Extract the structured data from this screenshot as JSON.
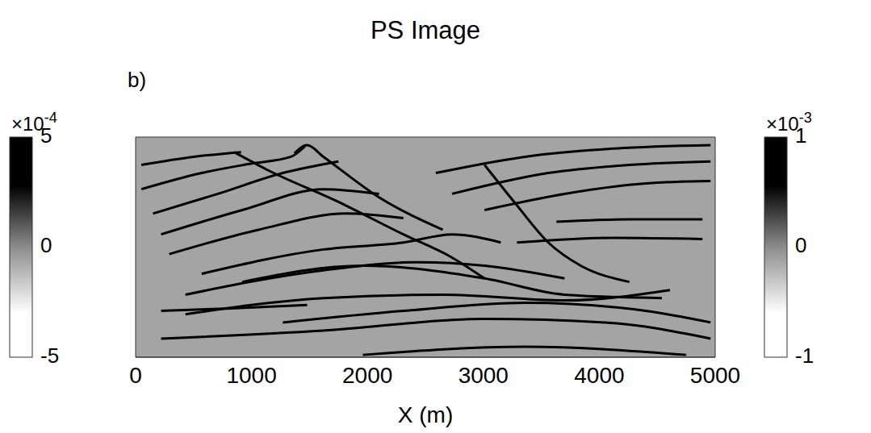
{
  "chart_data": {
    "type": "line",
    "title": "PS Image",
    "panel": "b)",
    "x_label": "X (m)",
    "xlim": [
      0,
      5000
    ],
    "xticks": [
      0,
      1000,
      2000,
      3000,
      4000,
      5000
    ],
    "ylim": [
      0,
      1900
    ],
    "yticks": [],
    "tick_labels": "x",
    "grid": false,
    "series": [
      {
        "color": "#000000",
        "x": [
          50,
          500,
          910
        ],
        "values": [
          240,
          170,
          130
        ]
      },
      {
        "color": "#000000",
        "x": [
          50,
          570,
          990,
          1340,
          1460
        ],
        "values": [
          450,
          310,
          230,
          170,
          80
        ]
      },
      {
        "color": "#000000",
        "x": [
          150,
          710,
          1270,
          1750
        ],
        "values": [
          660,
          490,
          310,
          210
        ]
      },
      {
        "color": "#000000",
        "x": [
          220,
          920,
          1620,
          2100
        ],
        "values": [
          840,
          630,
          450,
          490
        ]
      },
      {
        "color": "#000000",
        "x": [
          290,
          1060,
          1820,
          2310
        ],
        "values": [
          1010,
          800,
          660,
          700
        ]
      },
      {
        "color": "#000000",
        "x": [
          850,
          1130,
          1750,
          2310,
          2730,
          3010
        ],
        "values": [
          130,
          280,
          560,
          840,
          1040,
          1220
        ]
      },
      {
        "color": "#000000",
        "x": [
          1370,
          1480,
          1620,
          2100,
          2650
        ],
        "values": [
          140,
          70,
          170,
          520,
          800
        ]
      },
      {
        "color": "#000000",
        "x": [
          570,
          1620,
          2310,
          2730,
          3150
        ],
        "values": [
          1180,
          970,
          910,
          840,
          910
        ]
      },
      {
        "color": "#000000",
        "x": [
          430,
          1620,
          2450,
          3010,
          3700
        ],
        "values": [
          1360,
          1150,
          1080,
          1110,
          1220
        ]
      },
      {
        "color": "#000000",
        "x": [
          430,
          1620,
          2660,
          3700,
          4610
        ],
        "values": [
          1530,
          1390,
          1360,
          1410,
          1320
        ]
      },
      {
        "color": "#000000",
        "x": [
          920,
          1960,
          3010,
          3700,
          4540
        ],
        "values": [
          1250,
          1110,
          1220,
          1360,
          1390
        ]
      },
      {
        "color": "#000000",
        "x": [
          2590,
          3360,
          4120,
          4960
        ],
        "values": [
          310,
          170,
          100,
          70
        ]
      },
      {
        "color": "#000000",
        "x": [
          2730,
          3560,
          4260,
          4960
        ],
        "values": [
          490,
          310,
          240,
          210
        ]
      },
      {
        "color": "#000000",
        "x": [
          3010,
          3700,
          4400,
          4960
        ],
        "values": [
          630,
          490,
          400,
          380
        ]
      },
      {
        "color": "#000000",
        "x": [
          3630,
          4260,
          4890
        ],
        "values": [
          730,
          710,
          710
        ]
      },
      {
        "color": "#000000",
        "x": [
          3290,
          4120,
          4890
        ],
        "values": [
          910,
          870,
          880
        ]
      },
      {
        "color": "#000000",
        "x": [
          3010,
          3290,
          3560,
          3840,
          4260
        ],
        "values": [
          240,
          590,
          910,
          1110,
          1250
        ]
      },
      {
        "color": "#000000",
        "x": [
          220,
          780,
          1480
        ],
        "values": [
          1500,
          1480,
          1450
        ]
      },
      {
        "color": "#000000",
        "x": [
          1270,
          2310,
          3360,
          4400,
          4960
        ],
        "values": [
          1600,
          1500,
          1430,
          1500,
          1600
        ]
      },
      {
        "color": "#000000",
        "x": [
          220,
          1620,
          3010,
          4050,
          4960
        ],
        "values": [
          1740,
          1670,
          1570,
          1600,
          1740
        ]
      },
      {
        "color": "#000000",
        "x": [
          1960,
          3360,
          4750
        ],
        "values": [
          1880,
          1810,
          1880
        ]
      }
    ],
    "colorbars": [
      {
        "lim": [
          -0.0005,
          0.0005
        ],
        "ticks": [
          {
            "value": 0.0005,
            "label": "5"
          },
          {
            "value": 0,
            "label": "0"
          },
          {
            "value": -0.0005,
            "label": "-5"
          }
        ],
        "multiplier": "×10",
        "exponent": "-4"
      },
      {
        "lim": [
          -0.001,
          0.001
        ],
        "ticks": [
          {
            "value": 0.001,
            "label": "1"
          },
          {
            "value": 0,
            "label": "0"
          },
          {
            "value": -0.001,
            "label": "-1"
          }
        ],
        "multiplier": "×10",
        "exponent": "-3"
      }
    ]
  }
}
